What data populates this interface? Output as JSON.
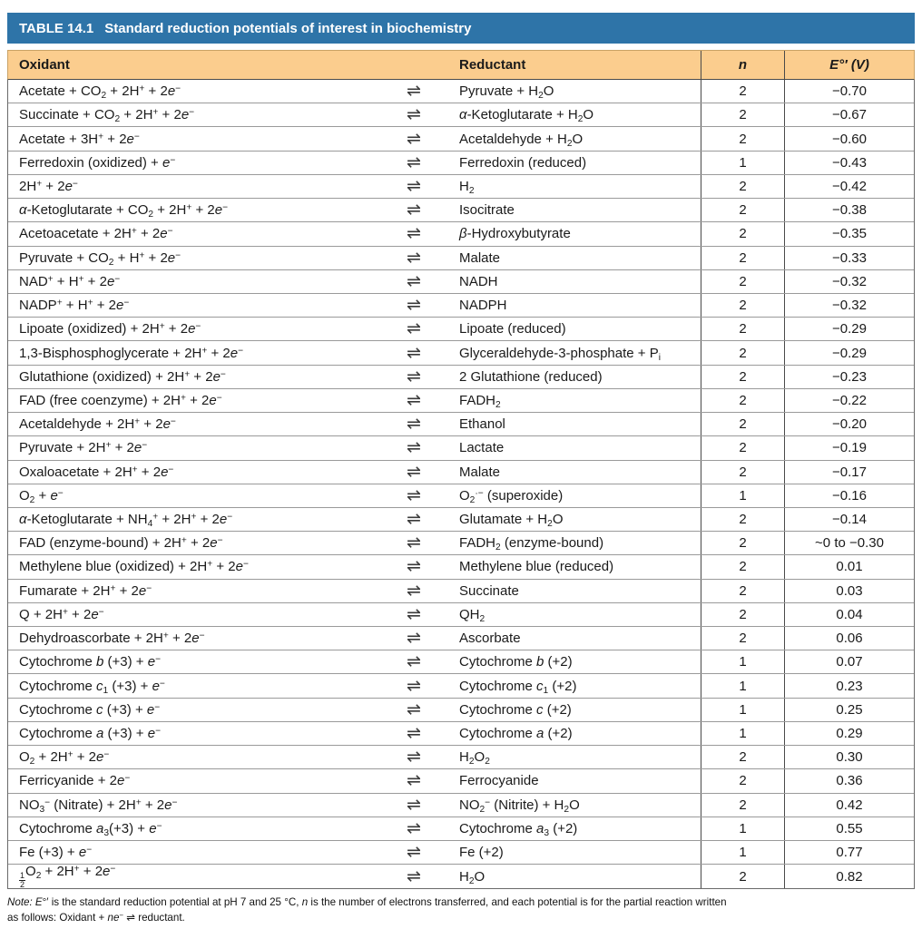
{
  "table": {
    "title": "TABLE 14.1",
    "subtitle": "Standard reduction potentials of interest in biochemistry",
    "columns": {
      "oxidant": "Oxidant",
      "reductant": "Reductant",
      "n": "n",
      "potential": "<i>E</i>°′ (V)"
    },
    "equilibrium_symbol": "⇌",
    "rows": [
      {
        "oxidant": "Acetate + CO<sub>2</sub> + 2H<sup>+</sup> + 2<i>e</i><sup>−</sup>",
        "reductant": "Pyruvate + H<sub>2</sub>O",
        "n": "2",
        "potential": "−0.70"
      },
      {
        "oxidant": "Succinate + CO<sub>2</sub> + 2H<sup>+</sup> + 2<i>e</i><sup>−</sup>",
        "reductant": "<i>α</i>-Ketoglutarate + H<sub>2</sub>O",
        "n": "2",
        "potential": "−0.67"
      },
      {
        "oxidant": "Acetate + 3H<sup>+</sup> + 2<i>e</i><sup>−</sup>",
        "reductant": "Acetaldehyde + H<sub>2</sub>O",
        "n": "2",
        "potential": "−0.60"
      },
      {
        "oxidant": "Ferredoxin (oxidized) + <i>e</i><sup>−</sup>",
        "reductant": "Ferredoxin (reduced)",
        "n": "1",
        "potential": "−0.43"
      },
      {
        "oxidant": "2H<sup>+</sup> + 2<i>e</i><sup>−</sup>",
        "reductant": "H<sub>2</sub>",
        "n": "2",
        "potential": "−0.42"
      },
      {
        "oxidant": "<i>α</i>-Ketoglutarate + CO<sub>2</sub> + 2H<sup>+</sup> + 2<i>e</i><sup>−</sup>",
        "reductant": "Isocitrate",
        "n": "2",
        "potential": "−0.38"
      },
      {
        "oxidant": "Acetoacetate + 2H<sup>+</sup> + 2<i>e</i><sup>−</sup>",
        "reductant": "<i>β</i>-Hydroxybutyrate",
        "n": "2",
        "potential": "−0.35"
      },
      {
        "oxidant": "Pyruvate + CO<sub>2</sub> + H<sup>+</sup> + 2<i>e</i><sup>−</sup>",
        "reductant": "Malate",
        "n": "2",
        "potential": "−0.33"
      },
      {
        "oxidant": "NAD<sup>+</sup> + H<sup>+</sup> + 2<i>e</i><sup>−</sup>",
        "reductant": "NADH",
        "n": "2",
        "potential": "−0.32"
      },
      {
        "oxidant": "NADP<sup>+</sup> + H<sup>+</sup> + 2<i>e</i><sup>−</sup>",
        "reductant": "NADPH",
        "n": "2",
        "potential": "−0.32"
      },
      {
        "oxidant": "Lipoate (oxidized) + 2H<sup>+</sup> + 2<i>e</i><sup>−</sup>",
        "reductant": "Lipoate (reduced)",
        "n": "2",
        "potential": "−0.29"
      },
      {
        "oxidant": "1,3-Bisphosphoglycerate + 2H<sup>+</sup> + 2<i>e</i><sup>−</sup>",
        "reductant": "Glyceraldehyde-3-phosphate + P<sub>i</sub>",
        "n": "2",
        "potential": "−0.29"
      },
      {
        "oxidant": "Glutathione (oxidized) + 2H<sup>+</sup> + 2<i>e</i><sup>−</sup>",
        "reductant": "2 Glutathione (reduced)",
        "n": "2",
        "potential": "−0.23"
      },
      {
        "oxidant": "FAD (free coenzyme) + 2H<sup>+</sup> + 2<i>e</i><sup>−</sup>",
        "reductant": "FADH<sub>2</sub>",
        "n": "2",
        "potential": "−0.22"
      },
      {
        "oxidant": "Acetaldehyde + 2H<sup>+</sup> + 2<i>e</i><sup>−</sup>",
        "reductant": "Ethanol",
        "n": "2",
        "potential": "−0.20"
      },
      {
        "oxidant": "Pyruvate + 2H<sup>+</sup> + 2<i>e</i><sup>−</sup>",
        "reductant": "Lactate",
        "n": "2",
        "potential": "−0.19"
      },
      {
        "oxidant": "Oxaloacetate + 2H<sup>+</sup> + 2<i>e</i><sup>−</sup>",
        "reductant": "Malate",
        "n": "2",
        "potential": "−0.17"
      },
      {
        "oxidant": "O<sub>2</sub> + <i>e</i><sup>−</sup>",
        "reductant": "O<sub>2</sub><sup>·−</sup> (superoxide)",
        "n": "1",
        "potential": "−0.16"
      },
      {
        "oxidant": "<i>α</i>-Ketoglutarate + NH<sub>4</sub><sup>+</sup> + 2H<sup>+</sup> + 2<i>e</i><sup>−</sup>",
        "reductant": "Glutamate + H<sub>2</sub>O",
        "n": "2",
        "potential": "−0.14"
      },
      {
        "oxidant": "FAD (enzyme-bound) + 2H<sup>+</sup> + 2<i>e</i><sup>−</sup>",
        "reductant": "FADH<sub>2</sub> (enzyme-bound)",
        "n": "2",
        "potential": "~0 to −0.30"
      },
      {
        "oxidant": "Methylene blue (oxidized) + 2H<sup>+</sup> + 2<i>e</i><sup>−</sup>",
        "reductant": "Methylene blue (reduced)",
        "n": "2",
        "potential": "0.01"
      },
      {
        "oxidant": "Fumarate + 2H<sup>+</sup> + 2<i>e</i><sup>−</sup>",
        "reductant": "Succinate",
        "n": "2",
        "potential": "0.03"
      },
      {
        "oxidant": "Q + 2H<sup>+</sup> + 2<i>e</i><sup>−</sup>",
        "reductant": "QH<sub>2</sub>",
        "n": "2",
        "potential": "0.04"
      },
      {
        "oxidant": "Dehydroascorbate + 2H<sup>+</sup> + 2<i>e</i><sup>−</sup>",
        "reductant": "Ascorbate",
        "n": "2",
        "potential": "0.06"
      },
      {
        "oxidant": "Cytochrome <i>b</i> (+3) + <i>e</i><sup>−</sup>",
        "reductant": "Cytochrome <i>b</i> (+2)",
        "n": "1",
        "potential": "0.07"
      },
      {
        "oxidant": "Cytochrome <i>c</i><sub>1</sub> (+3) + <i>e</i><sup>−</sup>",
        "reductant": "Cytochrome <i>c</i><sub>1</sub> (+2)",
        "n": "1",
        "potential": "0.23"
      },
      {
        "oxidant": "Cytochrome <i>c</i> (+3) + <i>e</i><sup>−</sup>",
        "reductant": "Cytochrome <i>c</i> (+2)",
        "n": "1",
        "potential": "0.25"
      },
      {
        "oxidant": "Cytochrome <i>a</i> (+3) + <i>e</i><sup>−</sup>",
        "reductant": "Cytochrome <i>a</i> (+2)",
        "n": "1",
        "potential": "0.29"
      },
      {
        "oxidant": "O<sub>2</sub> + 2H<sup>+</sup> + 2<i>e</i><sup>−</sup>",
        "reductant": "H<sub>2</sub>O<sub>2</sub>",
        "n": "2",
        "potential": "0.30"
      },
      {
        "oxidant": "Ferricyanide + 2<i>e</i><sup>−</sup>",
        "reductant": "Ferrocyanide",
        "n": "2",
        "potential": "0.36"
      },
      {
        "oxidant": "NO<sub>3</sub><sup>−</sup> (Nitrate) + 2H<sup>+</sup> + 2<i>e</i><sup>−</sup>",
        "reductant": "NO<sub>2</sub><sup>−</sup> (Nitrite) + H<sub>2</sub>O",
        "n": "2",
        "potential": "0.42"
      },
      {
        "oxidant": "Cytochrome <i>a</i><sub>3</sub>(+3) + <i>e</i><sup>−</sup>",
        "reductant": "Cytochrome <i>a</i><sub>3</sub> (+2)",
        "n": "1",
        "potential": "0.55"
      },
      {
        "oxidant": "Fe (+3) + <i>e</i><sup>−</sup>",
        "reductant": "Fe (+2)",
        "n": "1",
        "potential": "0.77"
      },
      {
        "oxidant": "<span class=\"frac\"><span>1</span><span>2</span></span>O<sub>2</sub> + 2H<sup>+</sup> + 2<i>e</i><sup>−</sup>",
        "reductant": "H<sub>2</sub>O",
        "n": "2",
        "potential": "0.82"
      }
    ],
    "note_line1": "<i>Note: E</i>°′ is the standard reduction potential at pH 7 and 25 °C, <i>n</i> is the number of electrons transferred, and each potential is for the partial reaction written",
    "note_line2": "as follows: Oxidant + <i>ne</i><sup>−</sup> <span class=\"eq\">⇌</span> reductant."
  },
  "colors": {
    "header_blue": "#2e74a8",
    "header_tan": "#fbcd8e",
    "tan_border": "#c9a265",
    "grid_line": "#9a9a9a",
    "dark_border": "#4a4a4a",
    "text": "#1a1a1a"
  }
}
